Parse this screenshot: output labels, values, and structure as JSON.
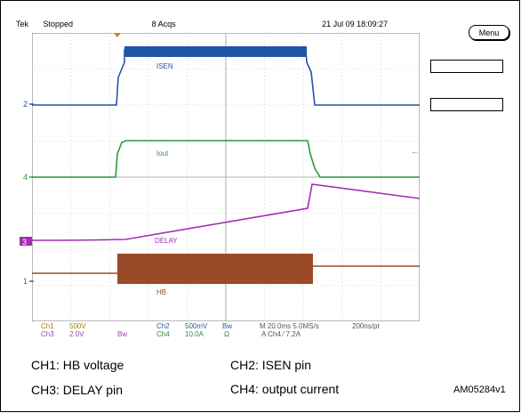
{
  "header": {
    "brand": "Tek",
    "status": "Stopped",
    "acqs": "8 Acqs",
    "datetime": "21 Jul 09 18:09:27"
  },
  "menu": {
    "label": "Menu"
  },
  "traces": {
    "isen_label": "ISEN",
    "iout_label": "Iout",
    "delay_label": "DELAY",
    "hb_label": "HB",
    "marker_2": "2",
    "marker_4": "4",
    "marker_3": "3",
    "marker_1": "1"
  },
  "channels": {
    "ch1": {
      "name": "Ch1",
      "scale": "500V"
    },
    "ch3": {
      "name": "Ch3",
      "scale": "2.0V",
      "bw": "Bw"
    },
    "ch2": {
      "name": "Ch2",
      "scale": "500mV",
      "bw": "Bw"
    },
    "ch4": {
      "name": "Ch4",
      "scale": "10.0A",
      "unit": "Ω"
    }
  },
  "timebase": {
    "line1": "M 20.0ms 5.0MS/s",
    "line1b": "200ns/pt",
    "line2": "A  Ch4  ⁄  7.2A"
  },
  "legend": {
    "ch1": "CH1:  HB voltage",
    "ch2": "CH2:  ISEN pin",
    "ch3": "CH3:  DELAY pin",
    "ch4": "CH4:  output current"
  },
  "figure_id": "AM05284v1",
  "colors": {
    "isen": "#2255a6",
    "iout": "#2a9a3a",
    "delay": "#a030b0",
    "hb": "#9a4a26"
  }
}
